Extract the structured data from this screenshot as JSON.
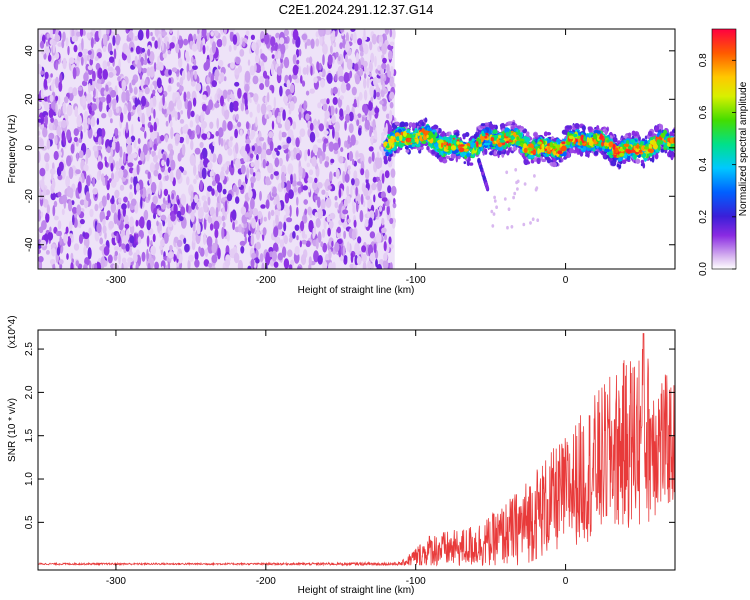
{
  "title": "C2E1.2024.291.12.37.G14",
  "chart_data": [
    {
      "type": "heatmap",
      "xlabel": "Height of straight line (km)",
      "ylabel": "Frequency (Hz)",
      "xlim": [
        -352,
        73
      ],
      "ylim": [
        -50,
        49
      ],
      "xticks": [
        -300,
        -200,
        -100,
        0
      ],
      "yticks": [
        -40,
        -20,
        0,
        20,
        40
      ],
      "xtick_labels": [
        "-300",
        "-200",
        "-100",
        "0"
      ],
      "ytick_labels": [
        "-40",
        "-20",
        "0",
        "20",
        "40"
      ],
      "colorbar": {
        "label": "Normalized spectral amplitude",
        "range": [
          0.0,
          0.92
        ],
        "ticks": [
          0.0,
          0.2,
          0.4,
          0.6,
          0.8
        ],
        "tick_labels": [
          "0.0",
          "0.2",
          "0.4",
          "0.6",
          "0.8"
        ],
        "colormap": "rainbow (white-purple-blue-cyan-green-yellow-red)"
      },
      "regions": [
        {
          "x_range": [
            -352,
            -114
          ],
          "y_range": [
            -50,
            49
          ],
          "amplitude": "low (~0.05–0.15)",
          "pattern": "noise speckle"
        },
        {
          "x_range": [
            -120,
            73
          ],
          "y_center": 2,
          "y_halfwidth": 5,
          "amplitude": "high (up to ~0.9)",
          "pattern": "narrow band near 0 Hz"
        },
        {
          "x_range": [
            -58,
            -52
          ],
          "y_range": [
            -17,
            -5
          ],
          "amplitude": "low",
          "pattern": "downward streak"
        }
      ],
      "grid": false
    },
    {
      "type": "line",
      "xlabel": "Height of straight line (km)",
      "ylabel": "SNR (10 * v/v)",
      "y_multiplier": "(x10^4)",
      "xlim": [
        -352,
        73
      ],
      "ylim": [
        -0.05,
        2.72
      ],
      "xticks": [
        -300,
        -200,
        -100,
        0
      ],
      "yticks": [
        0.5,
        1.0,
        1.5,
        2.0,
        2.5
      ],
      "xtick_labels": [
        "-300",
        "-200",
        "-100",
        "0"
      ],
      "ytick_labels": [
        "0.5",
        "1.0",
        "1.5",
        "2.0",
        "2.5"
      ],
      "series": [
        {
          "color": "#e83a3a",
          "envelope": {
            "x": [
              -352,
              -200,
              -110,
              -100,
              -90,
              -70,
              -50,
              -30,
              -20,
              -10,
              0,
              10,
              20,
              30,
              40,
              50,
              60,
              73
            ],
            "y_center": [
              0.02,
              0.02,
              0.02,
              0.1,
              0.18,
              0.2,
              0.28,
              0.45,
              0.6,
              0.72,
              0.85,
              1.0,
              1.15,
              1.3,
              1.4,
              1.5,
              1.45,
              1.4
            ],
            "y_spread": [
              0.01,
              0.01,
              0.02,
              0.12,
              0.2,
              0.22,
              0.3,
              0.45,
              0.55,
              0.6,
              0.65,
              0.75,
              0.85,
              0.9,
              1.0,
              1.1,
              0.9,
              0.7
            ]
          },
          "peak": {
            "x": 52,
            "y": 2.68
          }
        }
      ],
      "grid": false
    }
  ]
}
